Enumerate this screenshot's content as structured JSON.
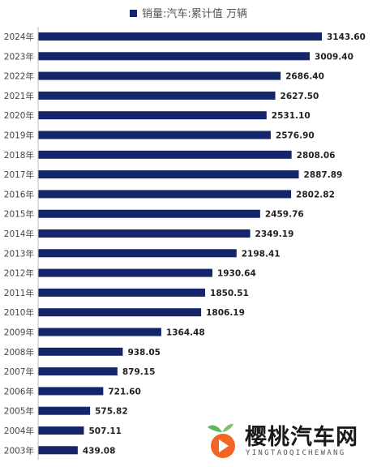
{
  "chart_data": {
    "type": "bar",
    "orientation": "horizontal",
    "series_name": "销量:汽车:累计值 万辆",
    "bar_color": "#14256a",
    "categories": [
      "2024年",
      "2023年",
      "2022年",
      "2021年",
      "2020年",
      "2019年",
      "2018年",
      "2017年",
      "2016年",
      "2015年",
      "2014年",
      "2013年",
      "2012年",
      "2011年",
      "2010年",
      "2009年",
      "2008年",
      "2007年",
      "2006年",
      "2005年",
      "2004年",
      "2003年"
    ],
    "value_labels": [
      "3143.60",
      "3009.40",
      "2686.40",
      "2627.50",
      "2531.10",
      "2576.90",
      "2808.06",
      "2887.89",
      "2802.82",
      "2459.76",
      "2349.19",
      "2198.41",
      "1930.64",
      "1850.51",
      "1806.19",
      "1364.48",
      "938.05",
      "879.15",
      "721.60",
      "575.82",
      "507.11",
      "439.08"
    ],
    "values": [
      3143.6,
      3009.4,
      2686.4,
      2627.5,
      2531.1,
      2576.9,
      2808.06,
      2887.89,
      2802.82,
      2459.76,
      2349.19,
      2198.41,
      1930.64,
      1850.51,
      1806.19,
      1364.48,
      938.05,
      879.15,
      721.6,
      575.82,
      507.11,
      439.08
    ],
    "legend_position": "top-center",
    "grid": false
  },
  "watermark": {
    "title": "樱桃汽车网",
    "subtitle": "YINGTAOQICHEWANG"
  }
}
